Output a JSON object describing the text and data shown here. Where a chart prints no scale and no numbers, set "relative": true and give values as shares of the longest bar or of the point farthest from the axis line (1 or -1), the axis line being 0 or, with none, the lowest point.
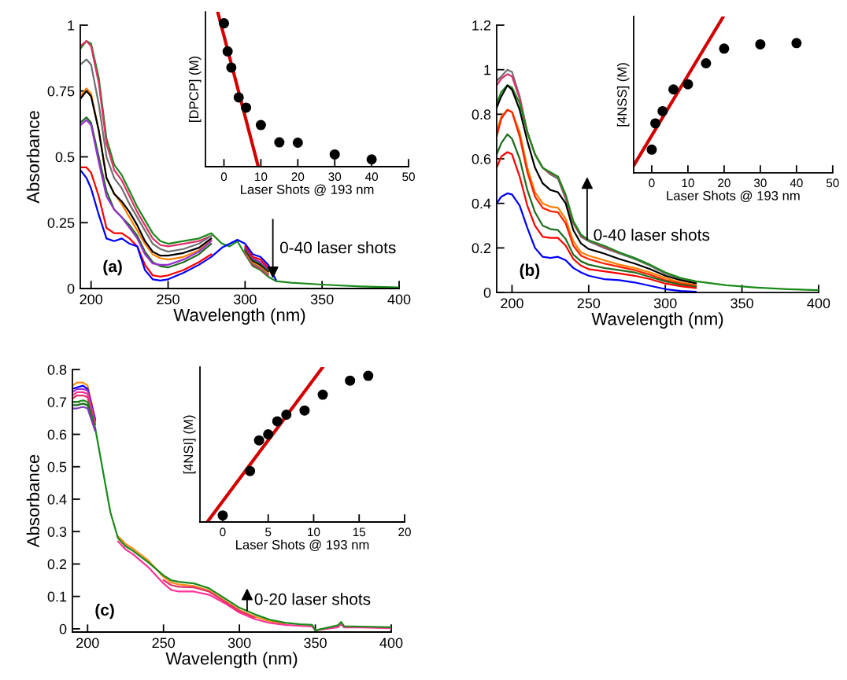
{
  "chart_data": [
    {
      "type": "line",
      "xlabel": "Wavelength (nm)",
      "ylabel": "Absorbance",
      "xlim": [
        193,
        400
      ],
      "ylim": [
        0,
        1
      ],
      "xticks": [
        200,
        250,
        300,
        350,
        400
      ],
      "yticks": [
        0,
        0.25,
        0.5,
        0.75,
        1
      ],
      "annotations": [
        "(a)",
        "0-40 laser shots"
      ],
      "x": [
        193,
        197,
        200,
        205,
        210,
        215,
        220,
        225,
        230,
        235,
        240,
        245,
        250,
        260,
        270,
        278,
        285,
        290,
        295,
        300,
        305,
        310,
        315,
        320,
        330,
        350,
        375,
        400
      ],
      "series": [
        {
          "color": "#1a8a1a",
          "values": [
            0.91,
            0.94,
            0.93,
            0.8,
            0.57,
            0.47,
            0.43,
            0.37,
            0.31,
            0.26,
            0.21,
            0.18,
            0.17,
            0.18,
            0.19,
            0.21,
            0.17,
            0.16,
            0.18,
            0.13,
            0.085,
            0.07,
            0.045,
            0.028,
            0.022,
            0.015,
            0.008,
            0.004
          ]
        },
        {
          "color": "#e0306a",
          "values": [
            0.92,
            0.94,
            0.92,
            0.78,
            0.55,
            0.45,
            0.41,
            0.35,
            0.29,
            0.24,
            0.19,
            0.165,
            0.16,
            0.17,
            0.18,
            0.2,
            null,
            null,
            null,
            0.134,
            0.09,
            0.075,
            0.05,
            null,
            null,
            null,
            null,
            null
          ]
        },
        {
          "color": "#707070",
          "values": [
            0.85,
            0.87,
            0.85,
            0.7,
            0.5,
            0.42,
            0.38,
            0.32,
            0.27,
            0.22,
            0.17,
            0.15,
            0.14,
            0.15,
            0.17,
            0.2,
            null,
            null,
            null,
            0.138,
            0.095,
            0.08,
            0.055,
            null,
            null,
            null,
            null,
            null
          ]
        },
        {
          "color": "#ff7f00",
          "values": [
            0.73,
            0.76,
            0.74,
            0.6,
            0.42,
            0.36,
            0.32,
            0.27,
            0.22,
            0.17,
            0.13,
            0.115,
            0.11,
            0.12,
            0.145,
            0.185,
            null,
            null,
            null,
            0.142,
            0.1,
            0.085,
            0.06,
            null,
            null,
            null,
            null,
            null
          ]
        },
        {
          "color": "#000000",
          "values": [
            0.72,
            0.75,
            0.73,
            0.6,
            0.42,
            0.36,
            0.33,
            0.29,
            0.24,
            0.18,
            0.14,
            0.125,
            0.125,
            0.135,
            0.155,
            0.19,
            null,
            null,
            null,
            0.146,
            0.105,
            0.09,
            0.065,
            null,
            null,
            null,
            null,
            null
          ]
        },
        {
          "color": "#1e6e1e",
          "values": [
            0.63,
            0.65,
            0.63,
            0.5,
            0.37,
            0.3,
            0.27,
            0.24,
            0.2,
            0.14,
            0.1,
            0.085,
            0.08,
            0.1,
            0.13,
            0.17,
            null,
            null,
            null,
            0.15,
            0.11,
            0.095,
            0.07,
            null,
            null,
            null,
            null,
            null
          ]
        },
        {
          "color": "#9b30d0",
          "values": [
            0.62,
            0.64,
            0.62,
            0.48,
            0.35,
            0.3,
            0.27,
            0.23,
            0.19,
            0.13,
            0.095,
            0.09,
            0.09,
            0.11,
            0.14,
            0.18,
            null,
            null,
            null,
            0.155,
            0.115,
            0.1,
            0.075,
            null,
            null,
            null,
            null,
            null
          ]
        },
        {
          "color": "#ff0000",
          "values": [
            0.46,
            0.46,
            0.44,
            0.35,
            0.23,
            0.21,
            0.21,
            0.19,
            0.16,
            0.09,
            0.05,
            0.045,
            0.05,
            0.07,
            0.1,
            0.13,
            null,
            null,
            null,
            0.16,
            0.12,
            0.11,
            0.08,
            null,
            null,
            null,
            null,
            null
          ]
        },
        {
          "color": "#0000ff",
          "values": [
            0.45,
            0.42,
            0.38,
            0.28,
            0.19,
            0.18,
            0.19,
            0.17,
            0.16,
            0.07,
            0.035,
            0.03,
            0.035,
            0.06,
            0.09,
            0.12,
            0.155,
            0.17,
            0.185,
            0.17,
            0.13,
            0.12,
            0.09,
            0.033,
            null,
            null,
            null,
            null
          ]
        }
      ]
    },
    {
      "type": "line",
      "relative": true,
      "xlabel": "Laser Shots @ 193 nm",
      "ylabel": "[DPCP] (M)",
      "xlim": [
        -5,
        50
      ],
      "xticks": [
        0,
        10,
        20,
        30,
        40,
        50
      ],
      "series": [
        {
          "type": "scatter",
          "marker": "circle",
          "color": "#000000",
          "x": [
            0,
            1,
            2,
            4,
            6,
            10,
            15,
            20,
            30,
            40
          ],
          "values": [
            0.926,
            0.745,
            0.64,
            0.447,
            0.381,
            0.269,
            0.157,
            0.155,
            0.079,
            0.047
          ]
        },
        {
          "type": "line",
          "color": "#d40000",
          "x": [
            -1.7,
            9.3
          ],
          "values": [
            1,
            0
          ]
        }
      ]
    },
    {
      "type": "line",
      "xlabel": "Wavelength (nm)",
      "xlim": [
        190,
        400
      ],
      "ylim": [
        0,
        1.2
      ],
      "xticks": [
        200,
        250,
        300,
        350,
        400
      ],
      "yticks": [
        0,
        0.2,
        0.4,
        0.6,
        0.8,
        1,
        1.2
      ],
      "annotations": [
        "(b)",
        "0-40 laser shots"
      ],
      "x": [
        190,
        193,
        197,
        200,
        205,
        210,
        215,
        220,
        225,
        230,
        235,
        240,
        245,
        250,
        260,
        270,
        280,
        290,
        300,
        310,
        320,
        340,
        360,
        380,
        400
      ],
      "series": [
        {
          "color": "#707070",
          "values": [
            0.95,
            0.97,
            1.0,
            0.99,
            0.88,
            0.72,
            0.62,
            0.56,
            0.53,
            0.51,
            0.42,
            0.31,
            0.25,
            0.23,
            0.2,
            0.175,
            0.15,
            0.12,
            0.085,
            0.06,
            0.045,
            null,
            null,
            null,
            null
          ]
        },
        {
          "color": "#e0306a",
          "values": [
            0.93,
            0.96,
            0.98,
            0.97,
            0.87,
            0.72,
            0.62,
            0.56,
            0.535,
            0.52,
            0.43,
            0.315,
            0.255,
            0.235,
            0.205,
            0.178,
            null,
            null,
            null,
            null,
            null,
            null,
            null,
            null,
            null
          ]
        },
        {
          "color": "#1a8a1a",
          "values": [
            0.85,
            0.9,
            0.93,
            0.92,
            0.85,
            0.72,
            0.62,
            0.56,
            0.54,
            0.52,
            0.44,
            0.32,
            0.26,
            0.235,
            0.21,
            0.18,
            0.155,
            0.125,
            0.09,
            0.065,
            0.05,
            0.032,
            0.022,
            0.015,
            0.01
          ]
        },
        {
          "color": "#000000",
          "values": [
            0.83,
            0.88,
            0.93,
            0.91,
            0.82,
            0.68,
            0.56,
            0.49,
            0.46,
            0.45,
            0.4,
            0.28,
            0.22,
            0.195,
            0.175,
            0.15,
            0.13,
            0.105,
            0.075,
            0.055,
            0.04,
            null,
            null,
            null,
            null
          ]
        },
        {
          "color": "#ff7f00",
          "values": [
            0.72,
            0.79,
            0.82,
            0.81,
            0.72,
            0.56,
            0.45,
            0.4,
            0.385,
            0.38,
            0.33,
            0.23,
            0.18,
            0.165,
            0.145,
            0.125,
            0.11,
            0.09,
            0.065,
            0.045,
            0.033,
            null,
            null,
            null,
            null
          ]
        },
        {
          "color": "#ff2000",
          "values": [
            0.7,
            0.78,
            0.82,
            0.81,
            0.7,
            0.54,
            0.43,
            0.38,
            0.365,
            0.36,
            0.31,
            0.21,
            0.165,
            0.15,
            0.13,
            0.115,
            0.1,
            0.08,
            0.055,
            0.04,
            0.03,
            null,
            null,
            null,
            null
          ]
        },
        {
          "color": "#1e6e1e",
          "values": [
            0.62,
            0.67,
            0.71,
            0.69,
            0.6,
            0.46,
            0.36,
            0.3,
            0.285,
            0.28,
            0.24,
            0.17,
            0.14,
            0.125,
            0.11,
            0.1,
            0.09,
            0.07,
            0.05,
            0.035,
            0.025,
            null,
            null,
            null,
            null
          ]
        },
        {
          "color": "#ff0000",
          "values": [
            0.56,
            0.61,
            0.63,
            0.62,
            0.52,
            0.39,
            0.3,
            0.25,
            0.245,
            0.245,
            0.21,
            0.15,
            0.12,
            0.105,
            0.095,
            0.085,
            0.075,
            0.06,
            0.04,
            0.028,
            0.02,
            null,
            null,
            null,
            null
          ]
        },
        {
          "color": "#0000ff",
          "values": [
            0.4,
            0.43,
            0.445,
            0.44,
            0.39,
            0.29,
            0.2,
            0.16,
            0.155,
            0.16,
            0.145,
            0.11,
            0.09,
            0.075,
            0.06,
            0.055,
            0.045,
            0.03,
            0.015,
            0.007,
            0.003,
            null,
            null,
            null,
            null
          ]
        }
      ]
    },
    {
      "type": "line",
      "relative": true,
      "xlabel": "Laser Shots @ 193 nm",
      "ylabel": "[4NSS] (M)",
      "xlim": [
        -5,
        50
      ],
      "xticks": [
        0,
        10,
        20,
        30,
        40,
        50
      ],
      "series": [
        {
          "type": "scatter",
          "marker": "circle",
          "color": "#000000",
          "x": [
            0,
            1,
            3,
            6,
            10,
            15,
            20,
            30,
            40
          ],
          "values": [
            0.149,
            0.317,
            0.395,
            0.534,
            0.567,
            0.701,
            0.795,
            0.822,
            0.83
          ]
        },
        {
          "type": "line",
          "color": "#d40000",
          "x": [
            -5,
            19.8
          ],
          "values": [
            0.047,
            1
          ]
        }
      ]
    },
    {
      "type": "line",
      "xlabel": "Wavelength (nm)",
      "ylabel": "Absorbance",
      "xlim": [
        190,
        400
      ],
      "ylim": [
        -0.01,
        0.8
      ],
      "xticks": [
        200,
        250,
        300,
        350,
        400
      ],
      "yticks": [
        0,
        0.1,
        0.2,
        0.3,
        0.4,
        0.5,
        0.6,
        0.7,
        0.8
      ],
      "annotations": [
        "(c)",
        "0-20 laser shots"
      ],
      "x": [
        190,
        193,
        197,
        200,
        205,
        210,
        215,
        220,
        225,
        230,
        240,
        250,
        255,
        260,
        270,
        280,
        290,
        300,
        310,
        320,
        330,
        340,
        348,
        350,
        365,
        367,
        369,
        380,
        400
      ],
      "series": [
        {
          "color": "#ff8c1a",
          "values": [
            0.75,
            0.76,
            0.76,
            0.75,
            0.65,
            null,
            null,
            0.286,
            0.262,
            0.247,
            0.211,
            0.16,
            0.143,
            0.137,
            0.132,
            0.118,
            0.088,
            0.058,
            0.038,
            0.023,
            0.015,
            null,
            null,
            null,
            null,
            null,
            null,
            null,
            null
          ]
        },
        {
          "color": "#0000ff",
          "values": [
            0.74,
            0.745,
            0.75,
            0.74,
            0.645,
            null,
            null,
            null,
            null,
            null,
            null,
            null,
            null,
            null,
            null,
            null,
            null,
            null,
            null,
            null,
            null,
            null,
            null,
            null,
            null,
            null,
            null,
            null,
            null
          ]
        },
        {
          "color": "#9b30d0",
          "values": [
            0.73,
            0.74,
            0.74,
            0.735,
            0.64,
            null,
            null,
            null,
            null,
            null,
            null,
            null,
            null,
            null,
            null,
            null,
            null,
            null,
            null,
            null,
            null,
            null,
            null,
            null,
            null,
            null,
            null,
            null,
            null
          ]
        },
        {
          "color": "#ff3399",
          "values": [
            0.72,
            0.73,
            0.73,
            0.725,
            0.63,
            null,
            null,
            0.27,
            0.245,
            0.23,
            0.19,
            0.14,
            0.12,
            0.115,
            0.115,
            0.105,
            0.08,
            0.05,
            0.03,
            0.018,
            0.012,
            0.009,
            0.007,
            -0.005,
            0.005,
            0.015,
            0.004,
            0.004,
            0.002
          ]
        },
        {
          "color": "#e0306a",
          "values": [
            0.71,
            0.72,
            0.72,
            0.715,
            0.63,
            null,
            null,
            null,
            null,
            null,
            null,
            0.15,
            0.135,
            0.13,
            0.128,
            0.115,
            0.085,
            0.055,
            0.035,
            null,
            null,
            null,
            null,
            null,
            null,
            null,
            null,
            null,
            null
          ]
        },
        {
          "color": "#1a8a1a",
          "values": [
            0.7,
            0.7,
            0.705,
            0.7,
            0.62,
            0.49,
            0.36,
            0.28,
            0.255,
            0.24,
            0.205,
            0.165,
            0.15,
            0.145,
            0.14,
            0.125,
            0.095,
            0.065,
            0.045,
            0.028,
            0.019,
            0.014,
            0.012,
            -0.005,
            0.011,
            0.021,
            0.008,
            0.007,
            0.005
          ]
        },
        {
          "color": "#1e6e1e",
          "values": [
            0.69,
            0.69,
            0.695,
            0.69,
            0.615,
            null,
            null,
            null,
            null,
            null,
            null,
            null,
            null,
            null,
            null,
            null,
            null,
            null,
            null,
            null,
            null,
            null,
            null,
            null,
            null,
            null,
            null,
            null,
            null
          ]
        },
        {
          "color": "#7a3fb8",
          "values": [
            0.68,
            0.68,
            0.685,
            0.68,
            0.61,
            null,
            null,
            null,
            null,
            null,
            null,
            null,
            null,
            null,
            null,
            null,
            null,
            null,
            null,
            null,
            null,
            null,
            null,
            null,
            null,
            null,
            null,
            null,
            null
          ]
        }
      ]
    },
    {
      "type": "line",
      "relative": true,
      "xlabel": "Laser Shots @ 193 nm",
      "ylabel": "[4NSI] (M)",
      "xlim": [
        -2.5,
        20
      ],
      "xticks": [
        0,
        5,
        10,
        15,
        20
      ],
      "series": [
        {
          "type": "scatter",
          "marker": "circle",
          "color": "#000000",
          "x": [
            0,
            3,
            4,
            5,
            6,
            7,
            9,
            11,
            14,
            16
          ],
          "values": [
            0.042,
            0.329,
            0.527,
            0.566,
            0.65,
            0.693,
            0.72,
            0.822,
            0.913,
            0.944
          ]
        },
        {
          "type": "line",
          "color": "#d40000",
          "x": [
            -1.7,
            11
          ],
          "values": [
            0,
            1
          ]
        }
      ]
    }
  ]
}
